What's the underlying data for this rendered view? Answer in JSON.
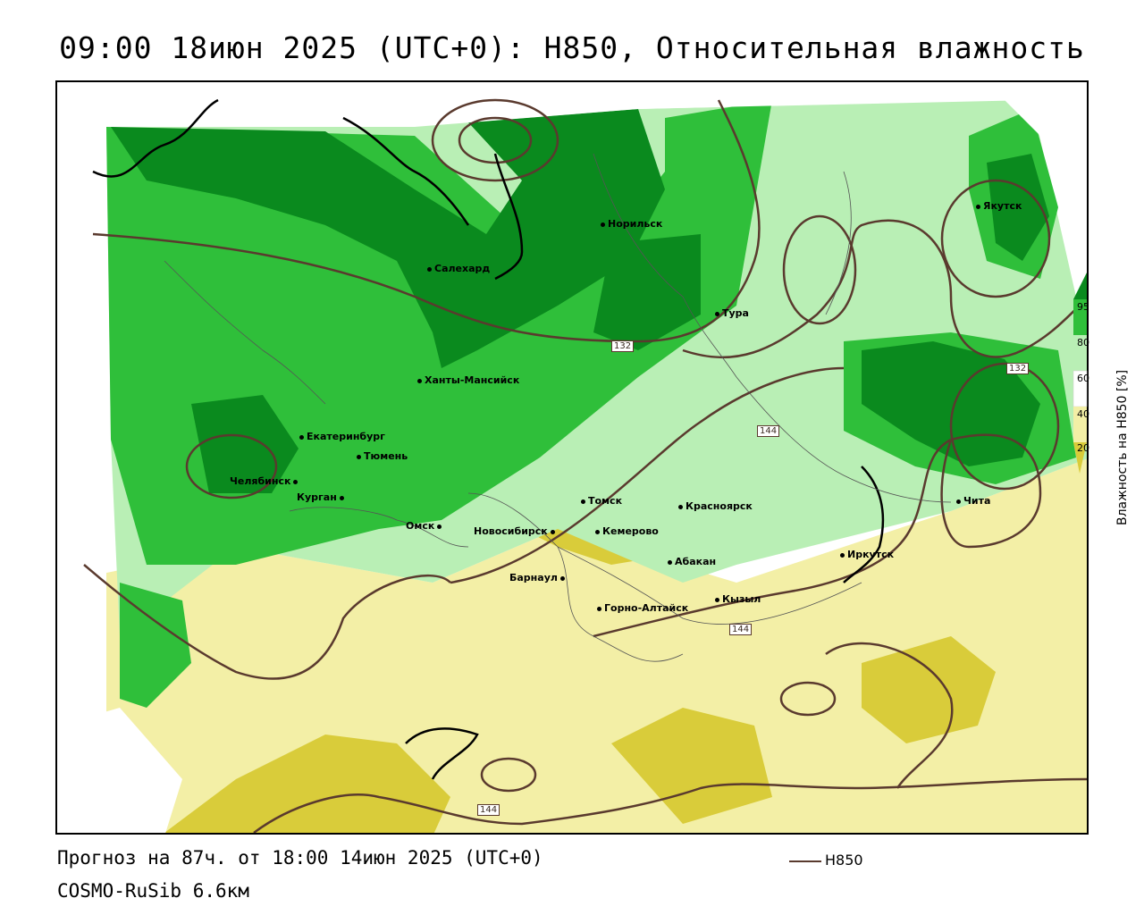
{
  "title": "09:00 18июн 2025 (UTC+0): H850, Относительная влажность",
  "forecast": "Прогноз на 87ч. от 18:00 14июн 2025 (UTC+0)",
  "model": "COSMO-RuSib 6.6км",
  "line_legend": "H850",
  "legend": {
    "title": "Влажность на H850 [%]",
    "levels": [
      "95",
      "80",
      "60",
      "40",
      "20"
    ],
    "colors": [
      "#0a8a1e",
      "#2fbf3a",
      "#b9efb5",
      "#f3efa6",
      "#d9cc3a"
    ]
  },
  "colors": {
    "contour": "#5a3a2e",
    "very_wet": "#0a8a1e",
    "wet": "#2fbf3a",
    "moist": "#b9efb5",
    "dry": "#f3efa6",
    "very_dry": "#d9cc3a"
  },
  "cities": [
    "Норильск",
    "Салехард",
    "Тура",
    "Якутск",
    "Ханты-Мансийск",
    "Екатеринбург",
    "Тюмень",
    "Челябинск",
    "Курган",
    "Омск",
    "Томск",
    "Новосибирск",
    "Кемерово",
    "Красноярск",
    "Барнаул",
    "Абакан",
    "Иркутск",
    "Чита",
    "Кызыл",
    "Горно-Алтайск"
  ],
  "contour_labels": [
    "132",
    "132",
    "144",
    "144",
    "144"
  ]
}
